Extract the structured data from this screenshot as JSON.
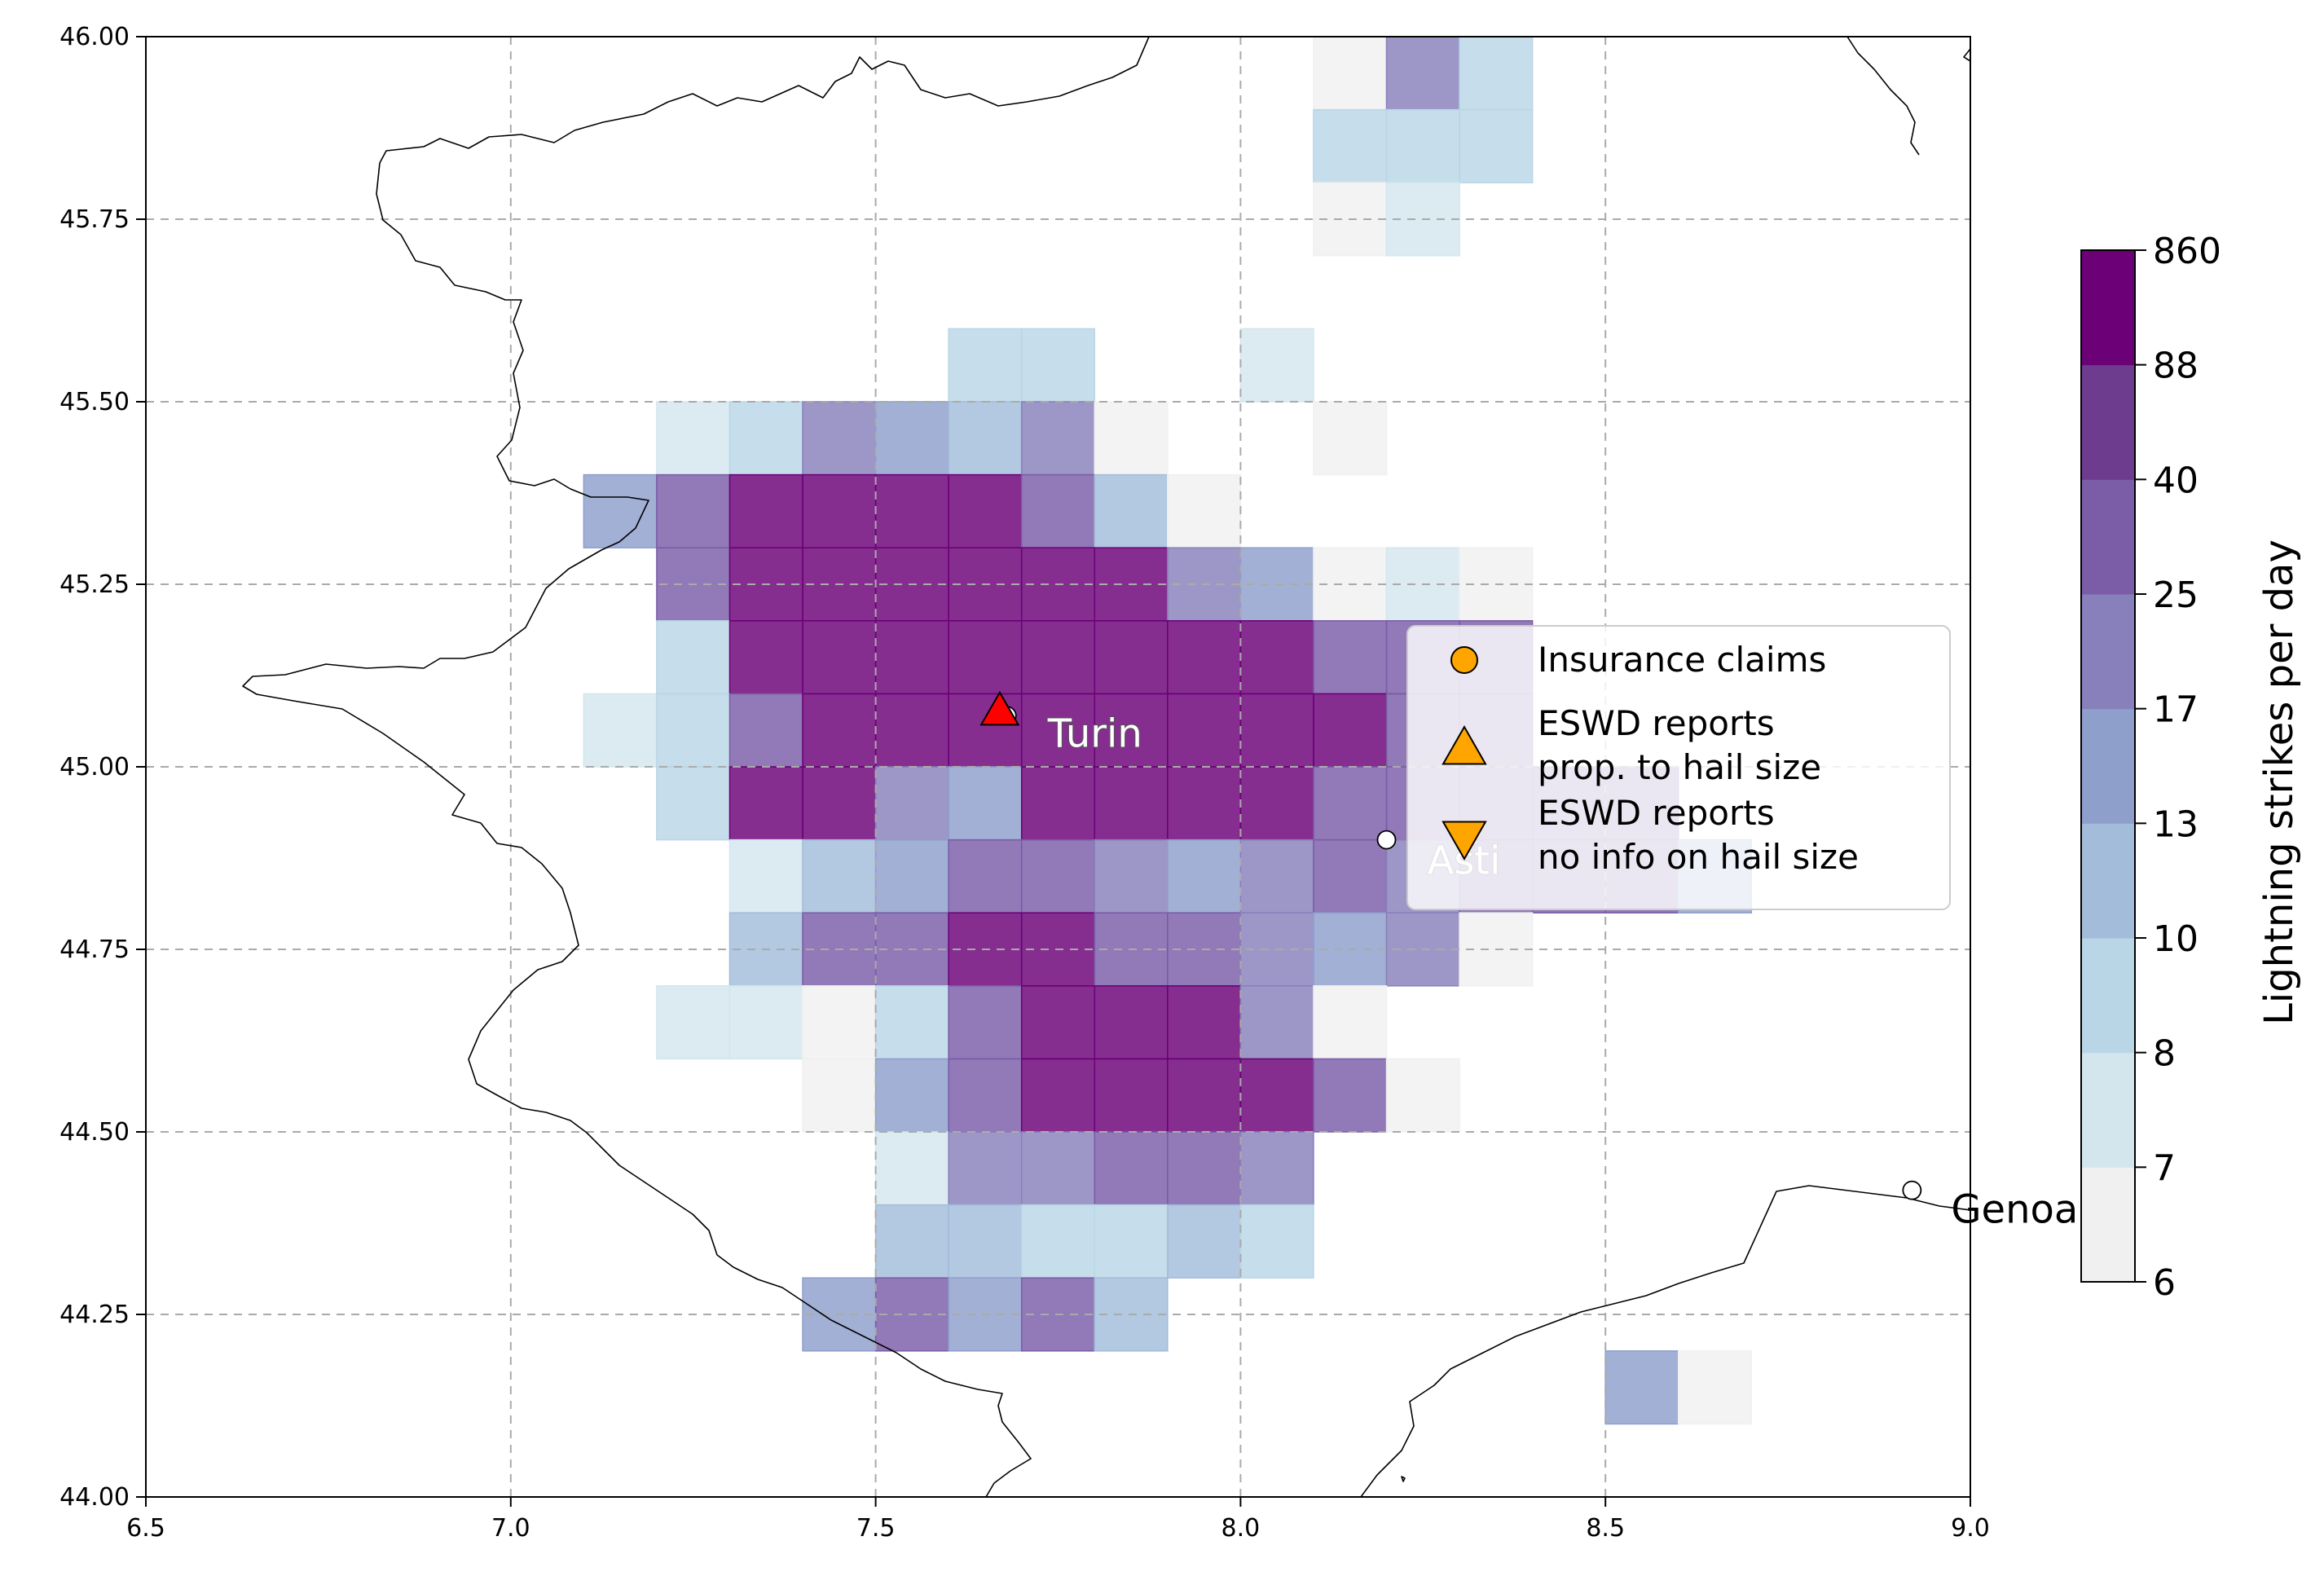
{
  "chart_data": {
    "type": "heatmap",
    "title": "",
    "xlabel": "",
    "ylabel": "",
    "xlim": [
      6.5,
      9.0
    ],
    "ylim": [
      44.0,
      46.0
    ],
    "x_ticks": [
      "6.5",
      "7.0",
      "7.5",
      "8.0",
      "8.5",
      "9.0"
    ],
    "y_ticks": [
      "44.00",
      "44.25",
      "44.50",
      "44.75",
      "45.00",
      "45.25",
      "45.50",
      "45.75",
      "46.00"
    ],
    "grid": true,
    "cell_size_deg": 0.1,
    "colorbar": {
      "label": "Lightning strikes per day",
      "ticks": [
        "6",
        "7",
        "8",
        "10",
        "13",
        "17",
        "25",
        "40",
        "88",
        "860"
      ],
      "colors": [
        "#f0f0f0",
        "#d3e6ee",
        "#b9d6e6",
        "#a2bcda",
        "#8e9fcc",
        "#8780bb",
        "#7a5ca7",
        "#6e3c8f",
        "#6b0077"
      ]
    },
    "cells": {
      "45.9": {
        "x": [
          8.1,
          8.2,
          8.3
        ],
        "level": [
          0,
          5,
          2
        ]
      },
      "45.8": {
        "x": [
          8.1,
          8.2,
          8.3
        ],
        "level": [
          2,
          2,
          2
        ]
      },
      "45.7": {
        "x": [
          8.1,
          8.2
        ],
        "level": [
          0,
          1
        ]
      },
      "45.5": {
        "x": [
          7.6,
          7.7,
          8.0
        ],
        "level": [
          2,
          2,
          1
        ]
      },
      "45.4": {
        "x": [
          7.2,
          7.3,
          7.4,
          7.5,
          7.6,
          7.7,
          7.8,
          8.1
        ],
        "level": [
          1,
          2,
          5,
          4,
          3,
          5,
          0,
          0
        ]
      },
      "45.3": {
        "x": [
          7.1,
          7.2,
          7.3,
          7.4,
          7.5,
          7.6,
          7.7,
          7.8,
          7.9
        ],
        "level": [
          4,
          6,
          8,
          8,
          8,
          8,
          6,
          3,
          0
        ]
      },
      "45.2": {
        "x": [
          7.2,
          7.3,
          7.4,
          7.5,
          7.6,
          7.7,
          7.8,
          7.9,
          8.0,
          8.1,
          8.2,
          8.3
        ],
        "level": [
          6,
          8,
          8,
          8,
          8,
          8,
          8,
          5,
          4,
          0,
          1,
          0
        ]
      },
      "45.1": {
        "x": [
          7.2,
          7.3,
          7.4,
          7.5,
          7.6,
          7.7,
          7.8,
          7.9,
          8.0,
          8.1,
          8.2,
          8.3
        ],
        "level": [
          2,
          8,
          8,
          8,
          8,
          8,
          8,
          8,
          8,
          6,
          6,
          6
        ]
      },
      "45.0": {
        "x": [
          7.1,
          7.2,
          7.3,
          7.4,
          7.5,
          7.6,
          7.7,
          7.8,
          7.9,
          8.0,
          8.1,
          8.2,
          8.3
        ],
        "level": [
          1,
          2,
          6,
          8,
          8,
          8,
          8,
          8,
          8,
          8,
          8,
          6,
          6
        ]
      },
      "44.9": {
        "x": [
          7.2,
          7.3,
          7.4,
          7.5,
          7.6,
          7.7,
          7.8,
          7.9,
          8.0,
          8.1,
          8.2,
          8.3,
          8.4,
          8.5
        ],
        "level": [
          2,
          8,
          8,
          5,
          4,
          8,
          8,
          8,
          8,
          6,
          6,
          6,
          6,
          6
        ]
      },
      "44.8": {
        "x": [
          7.3,
          7.4,
          7.5,
          7.6,
          7.7,
          7.8,
          7.9,
          8.0,
          8.1,
          8.2,
          8.3,
          8.4,
          8.5,
          8.6
        ],
        "level": [
          1,
          3,
          4,
          6,
          6,
          5,
          4,
          5,
          6,
          5,
          6,
          6,
          6,
          4
        ]
      },
      "44.7": {
        "x": [
          7.3,
          7.4,
          7.5,
          7.6,
          7.7,
          7.8,
          7.9,
          8.0,
          8.1,
          8.2,
          8.3
        ],
        "level": [
          3,
          6,
          6,
          8,
          8,
          6,
          6,
          5,
          4,
          5,
          0
        ]
      },
      "44.6": {
        "x": [
          7.2,
          7.3,
          7.4,
          7.5,
          7.6,
          7.7,
          7.8,
          7.9,
          8.0,
          8.1
        ],
        "level": [
          1,
          1,
          0,
          2,
          6,
          8,
          8,
          8,
          5,
          0
        ]
      },
      "44.5": {
        "x": [
          7.4,
          7.5,
          7.6,
          7.7,
          7.8,
          7.9,
          8.0,
          8.1,
          8.2
        ],
        "level": [
          0,
          4,
          6,
          8,
          8,
          8,
          8,
          6,
          0
        ]
      },
      "44.4": {
        "x": [
          7.5,
          7.6,
          7.7,
          7.8,
          7.9,
          8.0
        ],
        "level": [
          1,
          5,
          5,
          6,
          6,
          5
        ]
      },
      "44.3": {
        "x": [
          7.5,
          7.6,
          7.7,
          7.8,
          7.9,
          8.0
        ],
        "level": [
          3,
          3,
          2,
          2,
          3,
          2
        ]
      },
      "44.2": {
        "x": [
          7.4,
          7.5,
          7.6,
          7.7,
          7.8
        ],
        "level": [
          4,
          6,
          4,
          6,
          3
        ]
      },
      "44.1": {
        "x": [
          8.5,
          8.6
        ],
        "level": [
          4,
          0
        ]
      }
    },
    "cities": [
      {
        "name": "Turin",
        "lon": 7.68,
        "lat": 45.07
      },
      {
        "name": "Asti",
        "lon": 8.2,
        "lat": 44.9
      },
      {
        "name": "Genoa",
        "lon": 8.92,
        "lat": 44.42
      }
    ],
    "reports": [
      {
        "type": "eswd-hail-size",
        "lon": 7.67,
        "lat": 45.075,
        "color": "#ff0000"
      }
    ],
    "legend": {
      "position": "center-right",
      "entries": [
        {
          "label": "Insurance claims",
          "marker": "circle",
          "color": "#ffa500"
        },
        {
          "label": "ESWD reports",
          "label2": " prop. to hail size",
          "marker": "triangle-up",
          "color": "#ffa500"
        },
        {
          "label": "ESWD reports",
          "label2": " no info on hail size",
          "marker": "triangle-down",
          "color": "#ffa500"
        }
      ]
    }
  }
}
